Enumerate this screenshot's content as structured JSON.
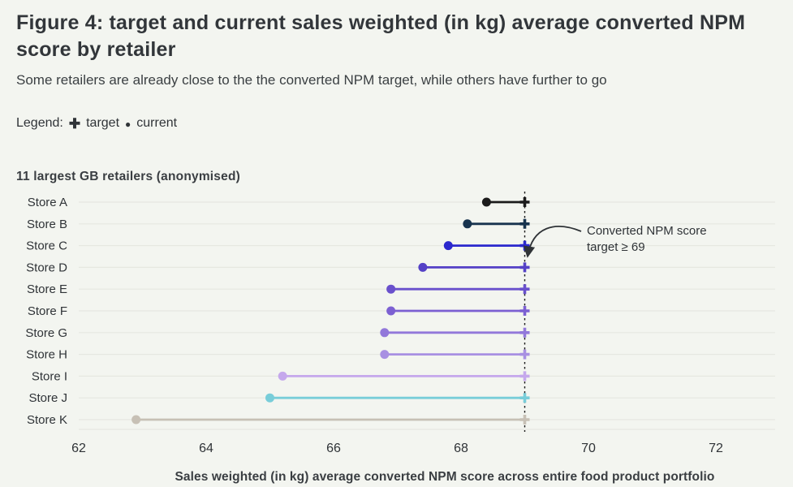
{
  "header": {
    "title": "Figure 4: target and current sales weighted (in kg) average converted NPM score by retailer",
    "subtitle": "Some retailers are already close to the the converted NPM target, while others have further to go",
    "legend": {
      "prefix": "Legend:",
      "target_symbol": "✚",
      "target_label": "target",
      "current_symbol": "●",
      "current_label": "current"
    }
  },
  "chart_data": {
    "type": "dumbbell",
    "y_axis_title": "11 largest GB retailers (anonymised)",
    "xlabel": "Sales weighted (in kg) average converted NPM score across entire food product portfolio",
    "xlim": [
      62,
      72.9
    ],
    "x_ticks": [
      62,
      64,
      66,
      68,
      70,
      72
    ],
    "grid": "horizontal-rows",
    "target_value": 69,
    "annotation": {
      "line1": "Converted NPM score",
      "line2": "target ≥ 69"
    },
    "series": [
      {
        "name": "Store A",
        "current": 68.4,
        "target": 69,
        "color": "#1b1b1b"
      },
      {
        "name": "Store B",
        "current": 68.1,
        "target": 69,
        "color": "#17334e"
      },
      {
        "name": "Store C",
        "current": 67.8,
        "target": 69,
        "color": "#2b28cd"
      },
      {
        "name": "Store D",
        "current": 67.4,
        "target": 69,
        "color": "#5441c6"
      },
      {
        "name": "Store E",
        "current": 66.9,
        "target": 69,
        "color": "#6950cc"
      },
      {
        "name": "Store F",
        "current": 66.9,
        "target": 69,
        "color": "#7c60d2"
      },
      {
        "name": "Store G",
        "current": 66.8,
        "target": 69,
        "color": "#9278da"
      },
      {
        "name": "Store H",
        "current": 66.8,
        "target": 69,
        "color": "#a890e2"
      },
      {
        "name": "Store I",
        "current": 65.2,
        "target": 69,
        "color": "#c5a8ec"
      },
      {
        "name": "Store J",
        "current": 65.0,
        "target": 69,
        "color": "#78cdd9"
      },
      {
        "name": "Store K",
        "current": 62.9,
        "target": 69,
        "color": "#c7c0b5"
      }
    ],
    "colors": {
      "grid": "#e6e8e1",
      "axis_text": "#2f3337",
      "axis_title_text": "#3a3e42",
      "dashed_line": "#1a1a1a",
      "annotation_text": "#2f3337",
      "annotation_arrow": "#2f3337"
    }
  }
}
